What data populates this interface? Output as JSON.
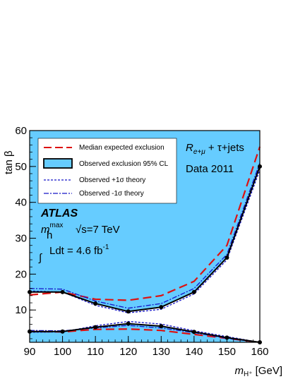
{
  "chart_data": {
    "type": "line",
    "xlabel": "m",
    "xlabel_sub": "H⁺",
    "xlabel_unit": " [GeV]",
    "ylabel": "tan β",
    "xlim": [
      90,
      160
    ],
    "ylim": [
      1,
      60
    ],
    "x_ticks": [
      90,
      100,
      110,
      120,
      130,
      140,
      150,
      160
    ],
    "y_ticks": [
      10,
      20,
      30,
      40,
      50,
      60
    ],
    "grid": false,
    "legend_position": "top-left",
    "colors": {
      "excluded_fill": "#66ccff",
      "median": "#dd1111",
      "observed": "#000000",
      "theory": "#1414c8"
    },
    "x": [
      90,
      100,
      110,
      120,
      130,
      140,
      150,
      160
    ],
    "series": [
      {
        "name": "Median expected exclusion",
        "style": "dashed-red",
        "upper": [
          14.2,
          15.0,
          13.0,
          12.7,
          14.0,
          18.0,
          28.0,
          55.5
        ],
        "lower": [
          4.0,
          3.9,
          4.6,
          4.7,
          4.3,
          3.2,
          2.1,
          1.0
        ]
      },
      {
        "name": "Observed exclusion 95% CL",
        "style": "solid-black-filled",
        "upper": [
          15.0,
          15.0,
          11.8,
          9.6,
          10.8,
          15.0,
          24.6,
          50.0
        ],
        "lower": [
          4.0,
          4.0,
          5.2,
          6.2,
          5.5,
          3.9,
          2.3,
          1.0
        ]
      },
      {
        "name": "Observed +1σ theory",
        "style": "dotted-blue",
        "upper": [
          15.3,
          15.0,
          11.3,
          9.2,
          10.2,
          14.5,
          24.0,
          49.0
        ],
        "lower": [
          3.8,
          3.9,
          5.6,
          6.8,
          6.1,
          4.2,
          2.6,
          1.0
        ]
      },
      {
        "name": "Observed -1σ theory",
        "style": "dashdot-blue",
        "upper": [
          16.0,
          15.8,
          12.5,
          10.5,
          11.8,
          16.0,
          25.5,
          51.0
        ],
        "lower": [
          4.3,
          4.2,
          5.0,
          5.7,
          5.0,
          3.7,
          2.1,
          1.0
        ]
      }
    ],
    "annotations": {
      "channel": "R",
      "channel_sub": "e+μ",
      "channel_rest": " + τ+jets",
      "dataset": "Data 2011",
      "experiment": "ATLAS",
      "scenario": "m",
      "scenario_sup": "max",
      "scenario_sub": "h",
      "energy": "√s=7 TeV",
      "lumi_integral": "∫",
      "lumi": "Ldt = 4.6 fb",
      "lumi_sup": "-1"
    }
  }
}
